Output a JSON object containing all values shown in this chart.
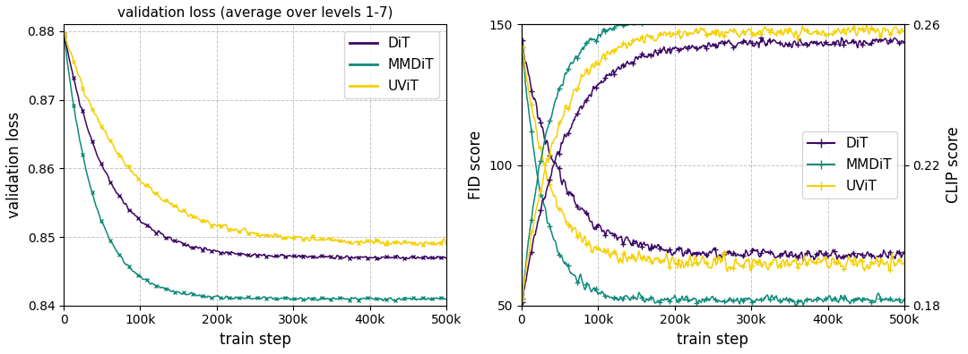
{
  "title_left": "validation loss (average over levels 1-7)",
  "xlabel": "train step",
  "ylabel_left": "validation loss",
  "ylabel_right_fid": "FID score",
  "ylabel_right_clip": "CLIP score",
  "colors": {
    "DiT": "#3b0764",
    "MMDiT": "#0e8a7a",
    "UViT": "#f5d000"
  },
  "ylim_left": [
    0.84,
    0.881
  ],
  "ylim_fid": [
    50,
    150
  ],
  "ylim_clip": [
    0.18,
    0.26
  ],
  "xticks": [
    0,
    100000,
    200000,
    300000,
    400000,
    500000
  ],
  "xtick_labels": [
    "0",
    "100k",
    "200k",
    "300k",
    "400k",
    "500k"
  ],
  "yticks_left": [
    0.84,
    0.85,
    0.86,
    0.87,
    0.88
  ],
  "yticks_fid": [
    50,
    100,
    150
  ],
  "yticks_clip": [
    0.18,
    0.22,
    0.26
  ],
  "n_points": 500
}
